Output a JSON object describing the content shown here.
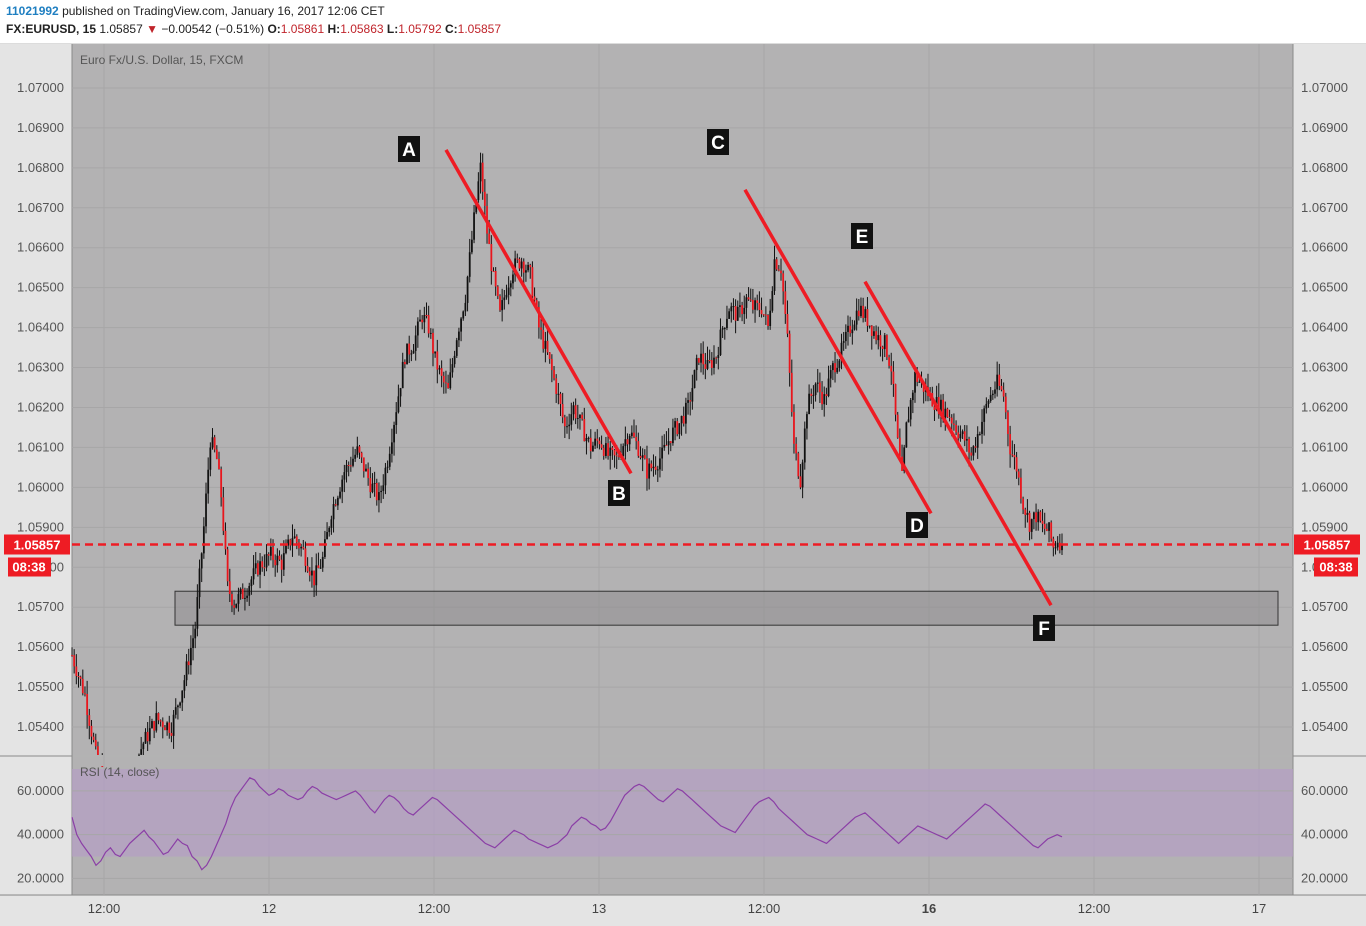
{
  "header": {
    "user_id": "11021992",
    "published_text": "published on TradingView.com, January 16, 2017 12:06 CET",
    "symbol": "FX:EURUSD, 15",
    "last": "1.05857",
    "change": "−0.00542 (−0.51%)",
    "open_label": "O:",
    "open": "1.05861",
    "high_label": "H:",
    "high": "1.05863",
    "low_label": "L:",
    "low": "1.05792",
    "close_label": "C:",
    "close": "1.05857"
  },
  "chart_data": [
    {
      "type": "candlestick",
      "title": "Euro Fx/U.S. Dollar, 15, FXCM",
      "ylim": [
        1.0533,
        1.0711
      ],
      "y_ticks": [
        "1.07000",
        "1.06900",
        "1.06800",
        "1.06700",
        "1.06600",
        "1.06500",
        "1.06400",
        "1.06300",
        "1.06200",
        "1.06100",
        "1.06000",
        "1.05900",
        "1.05800",
        "1.05700",
        "1.05600",
        "1.05500",
        "1.05400"
      ],
      "x_ticks": [
        {
          "label": "12:00",
          "bold": false
        },
        {
          "label": "12",
          "bold": false
        },
        {
          "label": "12:00",
          "bold": false
        },
        {
          "label": "13",
          "bold": false
        },
        {
          "label": "12:00",
          "bold": false
        },
        {
          "label": "16",
          "bold": true
        },
        {
          "label": "12:00",
          "bold": false
        },
        {
          "label": "17",
          "bold": false
        }
      ],
      "price_line": {
        "value": 1.05857,
        "label": "1.05857",
        "countdown": "08:38",
        "color": "#ee1c24"
      },
      "support_zone": {
        "from": 1.05655,
        "to": 1.0574
      },
      "annotations": [
        "A",
        "B",
        "C",
        "D",
        "E",
        "F"
      ],
      "trendlines": [
        {
          "from_label": "A",
          "to_label": "B",
          "y_start": 1.06845,
          "y_end": 1.06035
        },
        {
          "from_label": "C",
          "to_label": "D",
          "y_start": 1.06745,
          "y_end": 1.05935
        },
        {
          "from_label": "E",
          "to_label": "F",
          "y_start": 1.06515,
          "y_end": 1.05705
        }
      ],
      "price_path": [
        [
          0,
          1.0558
        ],
        [
          6,
          1.0548
        ],
        [
          12,
          1.053
        ],
        [
          20,
          1.0522
        ],
        [
          27,
          1.0528
        ],
        [
          33,
          1.0536
        ],
        [
          39,
          1.0542
        ],
        [
          46,
          1.054
        ],
        [
          52,
          1.0552
        ],
        [
          57,
          1.0565
        ],
        [
          61,
          1.059
        ],
        [
          64,
          1.0612
        ],
        [
          67,
          1.0607
        ],
        [
          69,
          1.0598
        ],
        [
          72,
          1.0575
        ],
        [
          75,
          1.0571
        ],
        [
          80,
          1.0574
        ],
        [
          86,
          1.058
        ],
        [
          92,
          1.0583
        ],
        [
          97,
          1.0581
        ],
        [
          102,
          1.0588
        ],
        [
          107,
          1.0584
        ],
        [
          112,
          1.0577
        ],
        [
          116,
          1.0582
        ],
        [
          120,
          1.0594
        ],
        [
          126,
          1.0604
        ],
        [
          132,
          1.0609
        ],
        [
          138,
          1.0601
        ],
        [
          142,
          1.0597
        ],
        [
          146,
          1.0607
        ],
        [
          150,
          1.062
        ],
        [
          154,
          1.0633
        ],
        [
          158,
          1.0636
        ],
        [
          162,
          1.0643
        ],
        [
          165,
          1.064
        ],
        [
          168,
          1.0632
        ],
        [
          171,
          1.0627
        ],
        [
          174,
          1.0624
        ],
        [
          178,
          1.0638
        ],
        [
          182,
          1.0648
        ],
        [
          185,
          1.0662
        ],
        [
          187,
          1.0672
        ],
        [
          189,
          1.068
        ],
        [
          192,
          1.0664
        ],
        [
          195,
          1.0652
        ],
        [
          198,
          1.0643
        ],
        [
          201,
          1.065
        ],
        [
          204,
          1.0655
        ],
        [
          208,
          1.0657
        ],
        [
          212,
          1.0653
        ],
        [
          216,
          1.064
        ],
        [
          220,
          1.0633
        ],
        [
          224,
          1.0625
        ],
        [
          228,
          1.0615
        ],
        [
          232,
          1.062
        ],
        [
          236,
          1.0615
        ],
        [
          240,
          1.061
        ],
        [
          244,
          1.0612
        ],
        [
          248,
          1.0608
        ],
        [
          252,
          1.0607
        ],
        [
          255,
          1.0611
        ],
        [
          258,
          1.0614
        ],
        [
          262,
          1.061
        ],
        [
          266,
          1.0604
        ],
        [
          270,
          1.0606
        ],
        [
          273,
          1.0608
        ],
        [
          277,
          1.0613
        ],
        [
          281,
          1.0616
        ],
        [
          285,
          1.062
        ],
        [
          290,
          1.0633
        ],
        [
          294,
          1.063
        ],
        [
          298,
          1.0633
        ],
        [
          301,
          1.064
        ],
        [
          304,
          1.0645
        ],
        [
          308,
          1.0643
        ],
        [
          312,
          1.0647
        ],
        [
          315,
          1.0645
        ],
        [
          319,
          1.0645
        ],
        [
          322,
          1.064
        ],
        [
          325,
          1.0657
        ],
        [
          328,
          1.0655
        ],
        [
          331,
          1.0637
        ],
        [
          334,
          1.061
        ],
        [
          337,
          1.0602
        ],
        [
          340,
          1.062
        ],
        [
          344,
          1.0626
        ],
        [
          348,
          1.0622
        ],
        [
          352,
          1.063
        ],
        [
          356,
          1.0634
        ],
        [
          360,
          1.064
        ],
        [
          364,
          1.0645
        ],
        [
          368,
          1.0642
        ],
        [
          372,
          1.0638
        ],
        [
          376,
          1.0636
        ],
        [
          379,
          1.063
        ],
        [
          382,
          1.0611
        ],
        [
          384,
          1.0602
        ],
        [
          386,
          1.0615
        ],
        [
          390,
          1.0628
        ],
        [
          394,
          1.0625
        ],
        [
          398,
          1.0622
        ],
        [
          402,
          1.062
        ],
        [
          406,
          1.0618
        ],
        [
          410,
          1.0614
        ],
        [
          413,
          1.0612
        ],
        [
          416,
          1.0608
        ],
        [
          420,
          1.0615
        ],
        [
          424,
          1.0622
        ],
        [
          428,
          1.0626
        ],
        [
          431,
          1.0623
        ],
        [
          434,
          1.061
        ],
        [
          437,
          1.0605
        ],
        [
          440,
          1.0596
        ],
        [
          443,
          1.0591
        ],
        [
          446,
          1.0593
        ],
        [
          449,
          1.059
        ],
        [
          452,
          1.0589
        ],
        [
          454,
          1.0585
        ],
        [
          456,
          1.0587
        ],
        [
          458,
          1.0586
        ]
      ]
    },
    {
      "type": "line",
      "title": "RSI (14, close)",
      "ylim": [
        17,
        70
      ],
      "band": [
        30,
        70
      ],
      "y_ticks": [
        "60.0000",
        "40.0000",
        "20.0000"
      ],
      "values": [
        48,
        40,
        36,
        33,
        30,
        26,
        28,
        32,
        34,
        31,
        30,
        33,
        36,
        38,
        40,
        42,
        39,
        37,
        34,
        31,
        32,
        35,
        38,
        36,
        35,
        30,
        28,
        24,
        26,
        30,
        35,
        40,
        45,
        52,
        57,
        60,
        63,
        66,
        65,
        62,
        60,
        58,
        59,
        61,
        60,
        58,
        57,
        56,
        57,
        60,
        62,
        61,
        59,
        58,
        57,
        56,
        57,
        58,
        59,
        60,
        58,
        55,
        52,
        50,
        53,
        56,
        58,
        57,
        55,
        52,
        50,
        49,
        51,
        53,
        55,
        57,
        56,
        54,
        52,
        50,
        48,
        46,
        44,
        42,
        40,
        38,
        36,
        35,
        34,
        36,
        38,
        40,
        42,
        41,
        40,
        38,
        37,
        36,
        35,
        34,
        35,
        36,
        38,
        40,
        44,
        46,
        48,
        47,
        45,
        44,
        42,
        43,
        46,
        50,
        54,
        58,
        60,
        62,
        63,
        62,
        60,
        58,
        56,
        55,
        57,
        59,
        61,
        60,
        58,
        56,
        54,
        52,
        50,
        48,
        46,
        44,
        43,
        42,
        41,
        44,
        47,
        50,
        53,
        55,
        56,
        57,
        55,
        52,
        50,
        48,
        46,
        44,
        42,
        40,
        39,
        38,
        37,
        36,
        38,
        40,
        42,
        44,
        46,
        48,
        49,
        50,
        48,
        46,
        44,
        42,
        40,
        38,
        36,
        38,
        40,
        42,
        44,
        43,
        42,
        41,
        40,
        39,
        38,
        40,
        42,
        44,
        46,
        48,
        50,
        52,
        54,
        53,
        51,
        49,
        47,
        45,
        43,
        41,
        39,
        37,
        35,
        34,
        36,
        38,
        39,
        40,
        39
      ]
    }
  ]
}
